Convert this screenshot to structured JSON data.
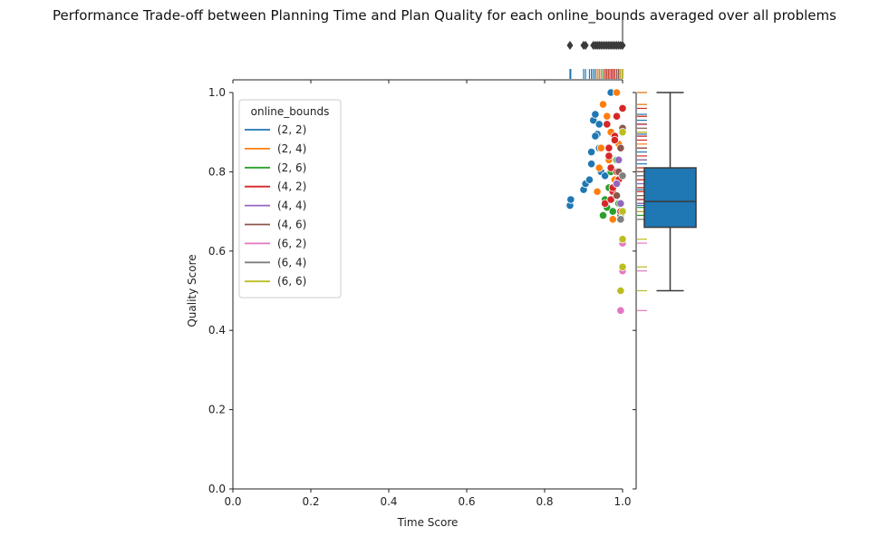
{
  "chart_data": {
    "type": "scatter",
    "title": "Performance Trade-off between Planning Time and Plan Quality for each online_bounds averaged over all problems",
    "xlabel": "Time Score",
    "ylabel": "Quality Score",
    "xlim": [
      0.0,
      1.0
    ],
    "ylim": [
      0.0,
      1.0
    ],
    "x_ticks": [
      "0.0",
      "0.2",
      "0.4",
      "0.6",
      "0.8",
      "1.0"
    ],
    "y_ticks": [
      "0.0",
      "0.2",
      "0.4",
      "0.6",
      "0.8",
      "1.0"
    ],
    "grid": false,
    "legend": {
      "title": "online_bounds",
      "position": "top-left",
      "entries": [
        "(2, 2)",
        "(2, 4)",
        "(2, 6)",
        "(4, 2)",
        "(4, 4)",
        "(4, 6)",
        "(6, 2)",
        "(6, 4)",
        "(6, 6)"
      ]
    },
    "series": [
      {
        "name": "(2, 2)",
        "color": "#1f77b4",
        "x": [
          0.865,
          0.867,
          0.9,
          0.905,
          0.915,
          0.92,
          0.925,
          0.93,
          0.935,
          0.94,
          0.94,
          0.945,
          0.95,
          0.955,
          0.96,
          0.97,
          0.92,
          0.93
        ],
        "y": [
          0.715,
          0.73,
          0.755,
          0.77,
          0.78,
          0.85,
          0.93,
          0.945,
          0.895,
          0.92,
          0.86,
          0.8,
          0.97,
          0.79,
          0.92,
          1.0,
          0.82,
          0.89
        ]
      },
      {
        "name": "(2, 4)",
        "color": "#ff7f0e",
        "x": [
          0.935,
          0.94,
          0.945,
          0.95,
          0.96,
          0.965,
          0.97,
          0.975,
          0.98,
          0.985,
          0.99
        ],
        "y": [
          0.75,
          0.81,
          0.86,
          0.97,
          0.94,
          0.83,
          0.9,
          0.68,
          0.78,
          1.0,
          0.87
        ]
      },
      {
        "name": "(2, 6)",
        "color": "#2ca02c",
        "x": [
          0.95,
          0.955,
          0.96,
          0.965,
          0.97,
          0.975,
          0.98,
          0.985,
          0.99,
          0.995
        ],
        "y": [
          0.69,
          0.73,
          0.71,
          0.76,
          0.8,
          0.7,
          0.74,
          0.83,
          0.72,
          0.69
        ]
      },
      {
        "name": "(4, 2)",
        "color": "#d62728",
        "x": [
          0.955,
          0.96,
          0.965,
          0.97,
          0.975,
          0.98,
          0.985,
          0.99,
          0.995,
          1.0,
          0.965,
          0.975,
          0.985,
          0.97,
          0.98
        ],
        "y": [
          0.72,
          0.92,
          0.86,
          0.81,
          0.75,
          0.89,
          0.94,
          0.78,
          0.7,
          0.96,
          0.84,
          0.76,
          0.8,
          0.73,
          0.88
        ]
      },
      {
        "name": "(4, 4)",
        "color": "#9467bd",
        "x": [
          0.985,
          0.99,
          0.995
        ],
        "y": [
          0.77,
          0.83,
          0.72
        ]
      },
      {
        "name": "(4, 6)",
        "color": "#8c564b",
        "x": [
          0.985,
          0.99,
          0.995,
          1.0
        ],
        "y": [
          0.74,
          0.8,
          0.86,
          0.91
        ]
      },
      {
        "name": "(6, 2)",
        "color": "#e377c2",
        "x": [
          0.995,
          1.0,
          1.0
        ],
        "y": [
          0.45,
          0.55,
          0.62
        ]
      },
      {
        "name": "(6, 4)",
        "color": "#7f7f7f",
        "x": [
          0.995,
          1.0
        ],
        "y": [
          0.68,
          0.79
        ]
      },
      {
        "name": "(6, 6)",
        "color": "#bcbd22",
        "x": [
          0.995,
          1.0,
          1.0,
          1.0,
          1.0
        ],
        "y": [
          0.5,
          0.56,
          0.63,
          0.7,
          0.9
        ]
      }
    ],
    "marginal_top": {
      "type": "box",
      "orient": "horizontal",
      "outliers_x": [
        0.865,
        0.9,
        0.905,
        0.925,
        0.93,
        0.935,
        0.94,
        0.945,
        0.95,
        0.955,
        0.96,
        0.965,
        0.97,
        0.975,
        0.98,
        0.985,
        0.99,
        0.995,
        1.0
      ]
    },
    "marginal_right": {
      "type": "box",
      "color": "#1f77b4",
      "min": 0.5,
      "q1": 0.66,
      "median": 0.725,
      "q3": 0.81,
      "max": 1.0
    }
  }
}
